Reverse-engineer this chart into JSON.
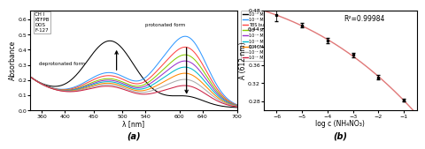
{
  "panel_a": {
    "legend_box_text": [
      "CH I",
      "KTFPB",
      "DOS",
      "F-127"
    ],
    "legend_entries": [
      {
        "label": "10⁻⁶ M NaOH",
        "color": "#000000"
      },
      {
        "label": "10⁻⁶ M HNO₃",
        "color": "#3399ff"
      },
      {
        "label": "TBS buffer pH 9.0",
        "color": "#ff4444"
      },
      {
        "label": "10⁻⁵ M NH₄NO₃",
        "color": "#88cc00"
      },
      {
        "label": "10⁻⁴ M NH₄NO₃",
        "color": "#9933cc"
      },
      {
        "label": "10⁻³ M NH₄NO₃",
        "color": "#00bbcc"
      },
      {
        "label": "10⁻² M NH₄NO₃",
        "color": "#ff8800"
      },
      {
        "label": "10⁻¹ M NH₄NO₃",
        "color": "#aaaaaa"
      },
      {
        "label": "10⁻¹ M NH₄NO₃",
        "color": "#cc2244"
      }
    ],
    "curves": [
      {
        "p1h": 0.405,
        "p1w": 42,
        "p2h": 0.065,
        "p2w": 30,
        "color": "#000000"
      },
      {
        "p1h": 0.195,
        "p1w": 42,
        "p2h": 0.455,
        "p2w": 35,
        "color": "#3399ff"
      },
      {
        "p1h": 0.175,
        "p1w": 42,
        "p2h": 0.385,
        "p2w": 35,
        "color": "#ff4444"
      },
      {
        "p1h": 0.155,
        "p1w": 42,
        "p2h": 0.335,
        "p2w": 35,
        "color": "#88cc00"
      },
      {
        "p1h": 0.145,
        "p1w": 42,
        "p2h": 0.295,
        "p2w": 35,
        "color": "#9933cc"
      },
      {
        "p1h": 0.135,
        "p1w": 42,
        "p2h": 0.255,
        "p2w": 35,
        "color": "#00bbcc"
      },
      {
        "p1h": 0.125,
        "p1w": 42,
        "p2h": 0.215,
        "p2w": 35,
        "color": "#ff8800"
      },
      {
        "p1h": 0.115,
        "p1w": 42,
        "p2h": 0.175,
        "p2w": 35,
        "color": "#aaaaaa"
      },
      {
        "p1h": 0.105,
        "p1w": 42,
        "p2h": 0.135,
        "p2w": 35,
        "color": "#cc2244"
      }
    ],
    "xlabel": "λ [nm]",
    "ylabel": "Absorbance",
    "xlim": [
      340,
      700
    ],
    "ylim": [
      0,
      0.66
    ],
    "xticks": [
      360,
      400,
      450,
      500,
      540,
      600,
      640,
      700
    ],
    "yticks": [
      0,
      0.1,
      0.2,
      0.3,
      0.4,
      0.5,
      0.6
    ],
    "label": "(a)"
  },
  "panel_b": {
    "x": [
      -6,
      -5,
      -4,
      -3,
      -2,
      -1
    ],
    "y": [
      0.469,
      0.447,
      0.413,
      0.382,
      0.333,
      0.282
    ],
    "yerr": [
      0.012,
      0.005,
      0.006,
      0.005,
      0.004,
      0.003
    ],
    "xlabel": "log c (NH₄NO₃)",
    "ylabel": "A (612 nm)",
    "xlim": [
      -6.5,
      -0.5
    ],
    "ylim": [
      0.26,
      0.48
    ],
    "xticks": [
      -6,
      -5,
      -4,
      -3,
      -2,
      -1
    ],
    "yticks": [
      0.28,
      0.32,
      0.36,
      0.4,
      0.44,
      0.48
    ],
    "r2_text": "R²=0.99984",
    "curve_color": "#e07878",
    "marker_color": "#000000",
    "label": "(b)"
  }
}
